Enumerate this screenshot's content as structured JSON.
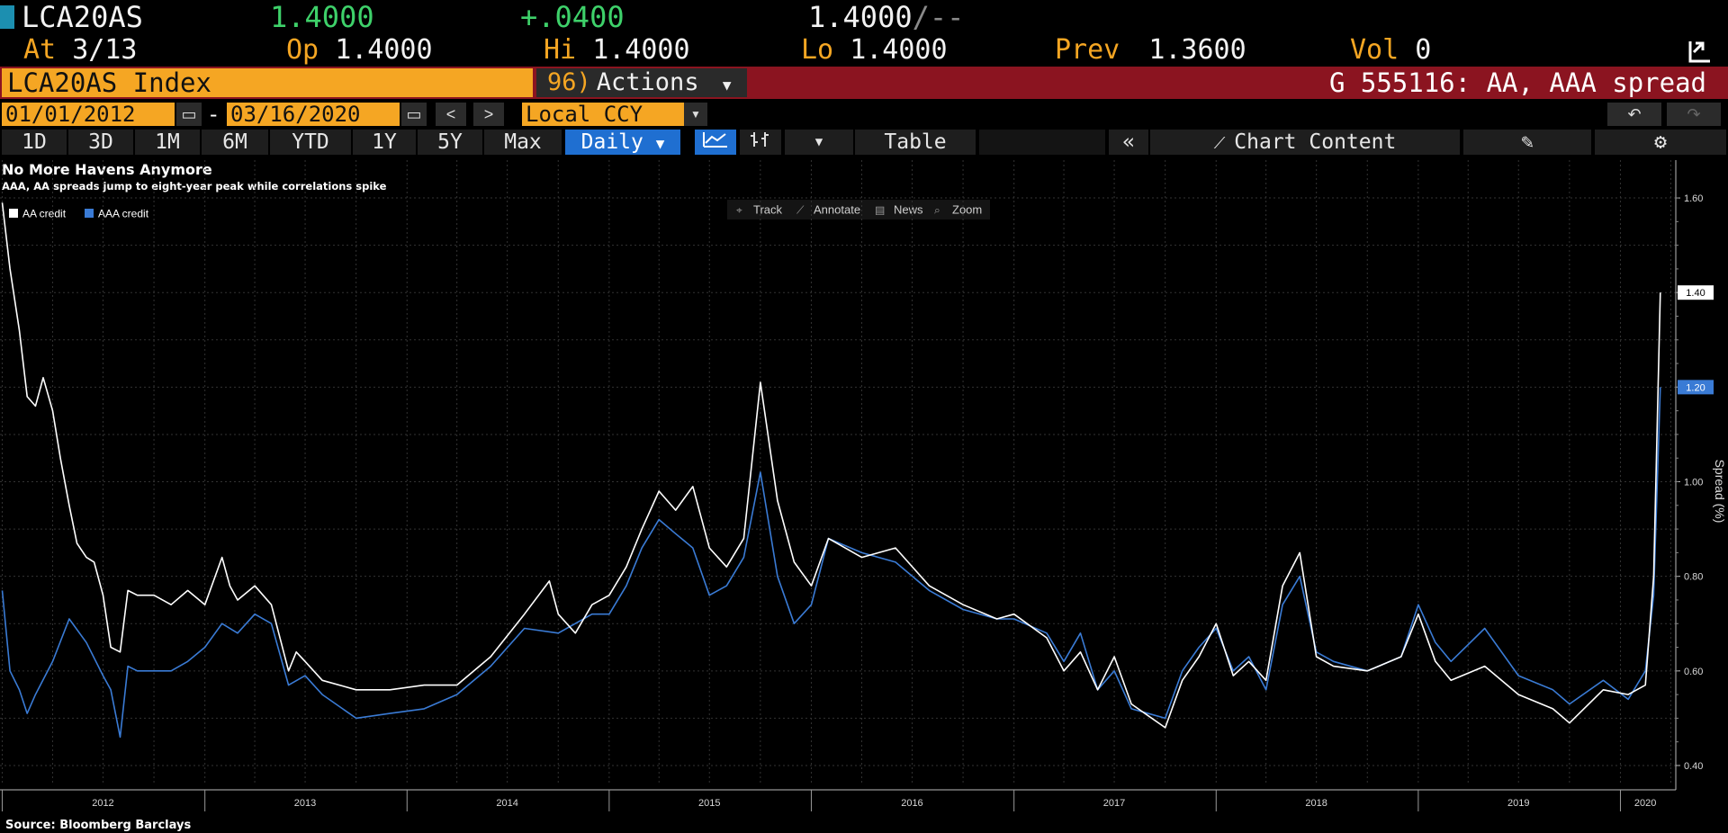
{
  "quote": {
    "ticker": "LCA20AS",
    "last": "1.4000",
    "change": "+.0400",
    "bid_ask": "1.4000",
    "bid_ask_suffix": "/--",
    "at_label": "At",
    "at_value": "3/13",
    "open_label": "Op",
    "open_value": "1.4000",
    "high_label": "Hi",
    "high_value": "1.4000",
    "low_label": "Lo",
    "low_value": "1.4000",
    "prev_label": "Prev",
    "prev_value": "1.3600",
    "vol_label": "Vol",
    "vol_value": "0"
  },
  "titlebar": {
    "security": "LCA20AS Index",
    "actions_num": "96)",
    "actions_label": "Actions",
    "subject": "G 555116: AA, AAA spread"
  },
  "daterange": {
    "start": "01/01/2012",
    "sep": "-",
    "end": "03/16/2020",
    "currency": "Local CCY"
  },
  "toolbar": {
    "periods": [
      "1D",
      "3D",
      "1M",
      "6M",
      "YTD",
      "1Y",
      "5Y",
      "Max"
    ],
    "frequency": "Daily",
    "table_label": "Table",
    "chart_content_label": "Chart Content"
  },
  "chart_tools": [
    "Track",
    "Annotate",
    "News",
    "Zoom"
  ],
  "colors": {
    "aa": "#ffffff",
    "aaa": "#3a7bd5",
    "accent": "#f5a623",
    "titlebar": "#8b1420"
  },
  "chart_data": {
    "type": "line",
    "title": "No More Havens Anymore",
    "subtitle": "AAA, AA spreads jump to eight-year peak while correlations spike",
    "ylabel": "Spread (%)",
    "xlabel": "",
    "source": "Source: Bloomberg Barclays",
    "ylim": [
      0.36,
      1.68
    ],
    "yticks": [
      "0.40",
      "0.60",
      "0.80",
      "1.00",
      "1.20",
      "1.40",
      "1.60"
    ],
    "xticks": [
      "2012",
      "2013",
      "2014",
      "2015",
      "2016",
      "2017",
      "2018",
      "2019",
      "2020"
    ],
    "grid": true,
    "legend_position": "top-left",
    "last_value_labels": [
      "1.40",
      "1.20"
    ],
    "series": [
      {
        "name": "AA credit",
        "color": "#ffffff",
        "points": [
          [
            "2012-01-01",
            1.59
          ],
          [
            "2012-01-15",
            1.45
          ],
          [
            "2012-02-01",
            1.32
          ],
          [
            "2012-02-15",
            1.18
          ],
          [
            "2012-03-01",
            1.16
          ],
          [
            "2012-03-15",
            1.22
          ],
          [
            "2012-04-01",
            1.15
          ],
          [
            "2012-04-15",
            1.05
          ],
          [
            "2012-05-01",
            0.95
          ],
          [
            "2012-05-15",
            0.87
          ],
          [
            "2012-06-01",
            0.84
          ],
          [
            "2012-06-15",
            0.83
          ],
          [
            "2012-07-01",
            0.76
          ],
          [
            "2012-07-15",
            0.65
          ],
          [
            "2012-08-01",
            0.64
          ],
          [
            "2012-08-15",
            0.77
          ],
          [
            "2012-09-01",
            0.76
          ],
          [
            "2012-10-01",
            0.76
          ],
          [
            "2012-11-01",
            0.74
          ],
          [
            "2012-12-01",
            0.77
          ],
          [
            "2013-01-01",
            0.74
          ],
          [
            "2013-02-01",
            0.84
          ],
          [
            "2013-02-15",
            0.78
          ],
          [
            "2013-03-01",
            0.75
          ],
          [
            "2013-04-01",
            0.78
          ],
          [
            "2013-05-01",
            0.74
          ],
          [
            "2013-06-01",
            0.6
          ],
          [
            "2013-06-15",
            0.64
          ],
          [
            "2013-07-01",
            0.62
          ],
          [
            "2013-08-01",
            0.58
          ],
          [
            "2013-10-01",
            0.56
          ],
          [
            "2013-12-01",
            0.56
          ],
          [
            "2014-02-01",
            0.57
          ],
          [
            "2014-04-01",
            0.57
          ],
          [
            "2014-06-01",
            0.63
          ],
          [
            "2014-08-01",
            0.72
          ],
          [
            "2014-09-15",
            0.79
          ],
          [
            "2014-10-01",
            0.72
          ],
          [
            "2014-11-01",
            0.68
          ],
          [
            "2014-12-01",
            0.74
          ],
          [
            "2015-01-01",
            0.76
          ],
          [
            "2015-02-01",
            0.82
          ],
          [
            "2015-03-01",
            0.9
          ],
          [
            "2015-04-01",
            0.98
          ],
          [
            "2015-05-01",
            0.94
          ],
          [
            "2015-06-01",
            0.99
          ],
          [
            "2015-07-01",
            0.86
          ],
          [
            "2015-08-01",
            0.82
          ],
          [
            "2015-09-01",
            0.88
          ],
          [
            "2015-10-01",
            1.21
          ],
          [
            "2015-11-01",
            0.96
          ],
          [
            "2015-12-01",
            0.83
          ],
          [
            "2016-01-01",
            0.78
          ],
          [
            "2016-02-01",
            0.88
          ],
          [
            "2016-04-01",
            0.84
          ],
          [
            "2016-06-01",
            0.86
          ],
          [
            "2016-08-01",
            0.78
          ],
          [
            "2016-10-01",
            0.74
          ],
          [
            "2016-12-01",
            0.71
          ],
          [
            "2017-01-01",
            0.72
          ],
          [
            "2017-03-01",
            0.67
          ],
          [
            "2017-04-01",
            0.6
          ],
          [
            "2017-05-01",
            0.64
          ],
          [
            "2017-06-01",
            0.56
          ],
          [
            "2017-07-01",
            0.63
          ],
          [
            "2017-08-01",
            0.53
          ],
          [
            "2017-10-01",
            0.48
          ],
          [
            "2017-11-01",
            0.58
          ],
          [
            "2017-12-01",
            0.63
          ],
          [
            "2018-01-01",
            0.7
          ],
          [
            "2018-02-01",
            0.59
          ],
          [
            "2018-03-01",
            0.62
          ],
          [
            "2018-04-01",
            0.58
          ],
          [
            "2018-05-01",
            0.78
          ],
          [
            "2018-06-01",
            0.85
          ],
          [
            "2018-07-01",
            0.63
          ],
          [
            "2018-08-01",
            0.61
          ],
          [
            "2018-10-01",
            0.6
          ],
          [
            "2018-12-01",
            0.63
          ],
          [
            "2019-01-01",
            0.72
          ],
          [
            "2019-02-01",
            0.62
          ],
          [
            "2019-03-01",
            0.58
          ],
          [
            "2019-05-01",
            0.61
          ],
          [
            "2019-07-01",
            0.55
          ],
          [
            "2019-09-01",
            0.52
          ],
          [
            "2019-10-01",
            0.49
          ],
          [
            "2019-12-01",
            0.56
          ],
          [
            "2020-01-15",
            0.55
          ],
          [
            "2020-02-15",
            0.57
          ],
          [
            "2020-03-01",
            0.8
          ],
          [
            "2020-03-13",
            1.4
          ]
        ]
      },
      {
        "name": "AAA credit",
        "color": "#3a7bd5",
        "points": [
          [
            "2012-01-01",
            0.77
          ],
          [
            "2012-01-15",
            0.6
          ],
          [
            "2012-02-01",
            0.56
          ],
          [
            "2012-02-15",
            0.51
          ],
          [
            "2012-03-01",
            0.55
          ],
          [
            "2012-04-01",
            0.62
          ],
          [
            "2012-05-01",
            0.71
          ],
          [
            "2012-06-01",
            0.66
          ],
          [
            "2012-07-01",
            0.59
          ],
          [
            "2012-07-15",
            0.56
          ],
          [
            "2012-08-01",
            0.46
          ],
          [
            "2012-08-15",
            0.61
          ],
          [
            "2012-09-01",
            0.6
          ],
          [
            "2012-10-01",
            0.6
          ],
          [
            "2012-11-01",
            0.6
          ],
          [
            "2012-12-01",
            0.62
          ],
          [
            "2013-01-01",
            0.65
          ],
          [
            "2013-02-01",
            0.7
          ],
          [
            "2013-03-01",
            0.68
          ],
          [
            "2013-04-01",
            0.72
          ],
          [
            "2013-05-01",
            0.7
          ],
          [
            "2013-06-01",
            0.57
          ],
          [
            "2013-07-01",
            0.59
          ],
          [
            "2013-08-01",
            0.55
          ],
          [
            "2013-10-01",
            0.5
          ],
          [
            "2013-12-01",
            0.51
          ],
          [
            "2014-02-01",
            0.52
          ],
          [
            "2014-04-01",
            0.55
          ],
          [
            "2014-06-01",
            0.61
          ],
          [
            "2014-08-01",
            0.69
          ],
          [
            "2014-10-01",
            0.68
          ],
          [
            "2014-12-01",
            0.72
          ],
          [
            "2015-01-01",
            0.72
          ],
          [
            "2015-02-01",
            0.78
          ],
          [
            "2015-03-01",
            0.86
          ],
          [
            "2015-04-01",
            0.92
          ],
          [
            "2015-05-01",
            0.89
          ],
          [
            "2015-06-01",
            0.86
          ],
          [
            "2015-07-01",
            0.76
          ],
          [
            "2015-08-01",
            0.78
          ],
          [
            "2015-09-01",
            0.84
          ],
          [
            "2015-10-01",
            1.02
          ],
          [
            "2015-11-01",
            0.8
          ],
          [
            "2015-12-01",
            0.7
          ],
          [
            "2016-01-01",
            0.74
          ],
          [
            "2016-02-01",
            0.88
          ],
          [
            "2016-04-01",
            0.85
          ],
          [
            "2016-06-01",
            0.83
          ],
          [
            "2016-08-01",
            0.77
          ],
          [
            "2016-10-01",
            0.73
          ],
          [
            "2016-12-01",
            0.71
          ],
          [
            "2017-01-01",
            0.71
          ],
          [
            "2017-03-01",
            0.68
          ],
          [
            "2017-04-01",
            0.62
          ],
          [
            "2017-05-01",
            0.68
          ],
          [
            "2017-06-01",
            0.56
          ],
          [
            "2017-07-01",
            0.6
          ],
          [
            "2017-08-01",
            0.52
          ],
          [
            "2017-10-01",
            0.5
          ],
          [
            "2017-11-01",
            0.6
          ],
          [
            "2017-12-01",
            0.65
          ],
          [
            "2018-01-01",
            0.69
          ],
          [
            "2018-02-01",
            0.6
          ],
          [
            "2018-03-01",
            0.63
          ],
          [
            "2018-04-01",
            0.56
          ],
          [
            "2018-05-01",
            0.74
          ],
          [
            "2018-06-01",
            0.8
          ],
          [
            "2018-07-01",
            0.64
          ],
          [
            "2018-08-01",
            0.62
          ],
          [
            "2018-10-01",
            0.6
          ],
          [
            "2018-12-01",
            0.63
          ],
          [
            "2019-01-01",
            0.74
          ],
          [
            "2019-02-01",
            0.66
          ],
          [
            "2019-03-01",
            0.62
          ],
          [
            "2019-05-01",
            0.69
          ],
          [
            "2019-07-01",
            0.59
          ],
          [
            "2019-09-01",
            0.56
          ],
          [
            "2019-10-01",
            0.53
          ],
          [
            "2019-12-01",
            0.58
          ],
          [
            "2020-01-15",
            0.54
          ],
          [
            "2020-02-15",
            0.6
          ],
          [
            "2020-03-01",
            0.76
          ],
          [
            "2020-03-13",
            1.2
          ]
        ]
      }
    ]
  }
}
